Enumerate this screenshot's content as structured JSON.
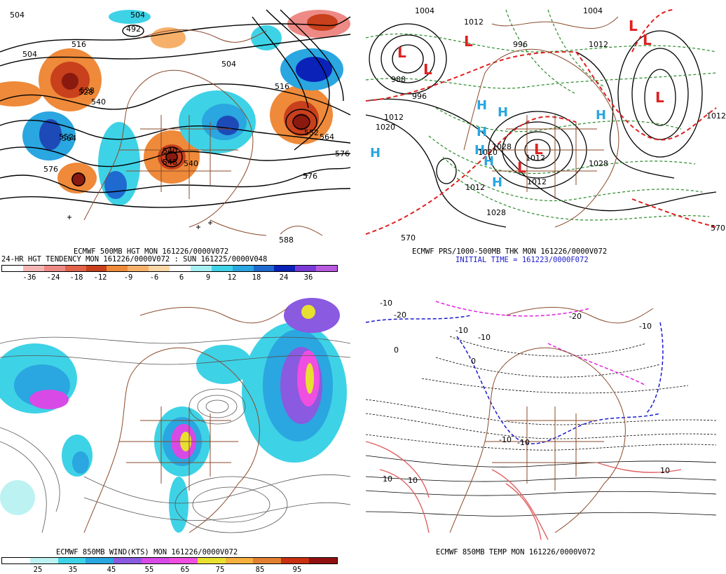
{
  "panels": {
    "top_left": {
      "caption1": "ECMWF 500MB HGT MON 161226/0000V072",
      "caption2": "24-HR HGT TENDENCY MON 161226/0000V072 : SUN 161225/0000V048",
      "colorbar": {
        "colors": [
          "#ffffff",
          "#f4b6b4",
          "#ee8a86",
          "#e2624a",
          "#c8401c",
          "#ee8a3a",
          "#f6b06a",
          "#fbd6a6",
          "#ffffff",
          "#a6f0f4",
          "#3ed2e6",
          "#2aa6e0",
          "#1e6ad0",
          "#0a22b8",
          "#7a3ad8",
          "#b85ae0"
        ],
        "ticks": [
          "-36",
          "-24",
          "-18",
          "-12",
          "-9",
          "-6",
          "6",
          "9",
          "12",
          "18",
          "24",
          "36"
        ]
      },
      "contour_labels": [
        "504",
        "516",
        "528",
        "540",
        "552",
        "564",
        "576",
        "576",
        "492",
        "504",
        "504",
        "516",
        "540",
        "564",
        "576",
        "588",
        "548",
        "540",
        "552",
        "504",
        "528"
      ]
    },
    "top_right": {
      "caption1": "ECMWF PRS/1000-500MB THK MON 161226/0000V072",
      "caption2": "INITIAL TIME = 161223/0000F072",
      "contour_labels": [
        "1004",
        "1012",
        "988",
        "996",
        "1012",
        "1020",
        "1028",
        "1012",
        "1012",
        "1028",
        "1012",
        "1012",
        "1020",
        "1028",
        "570",
        "570",
        "1004",
        "1012",
        "996"
      ],
      "high_symbols": [
        "H",
        "H",
        "H",
        "H",
        "H",
        "H",
        "H",
        "H"
      ],
      "low_symbols": [
        "L",
        "L",
        "L",
        "L",
        "L",
        "L",
        "L",
        "L"
      ]
    },
    "bottom_left": {
      "caption": "ECMWF 850MB WIND(KTS) MON 161226/0000V072",
      "colorbar": {
        "colors": [
          "#ffffff",
          "#bdf2f2",
          "#3ed2e6",
          "#2aa6e0",
          "#8a5ae0",
          "#d84ae6",
          "#f04ee0",
          "#e8e030",
          "#f6b040",
          "#e08030",
          "#c83010",
          "#901010"
        ],
        "ticks": [
          "25",
          "35",
          "45",
          "55",
          "65",
          "75",
          "85",
          "95"
        ]
      }
    },
    "bottom_right": {
      "caption": "ECMWF 850MB TEMP MON 161226/0000V072",
      "contour_labels": [
        "-20",
        "-10",
        "-10",
        "-10",
        "-20",
        "-10",
        "-10",
        "-10",
        "10",
        "10",
        "10",
        "0",
        "0"
      ]
    }
  }
}
